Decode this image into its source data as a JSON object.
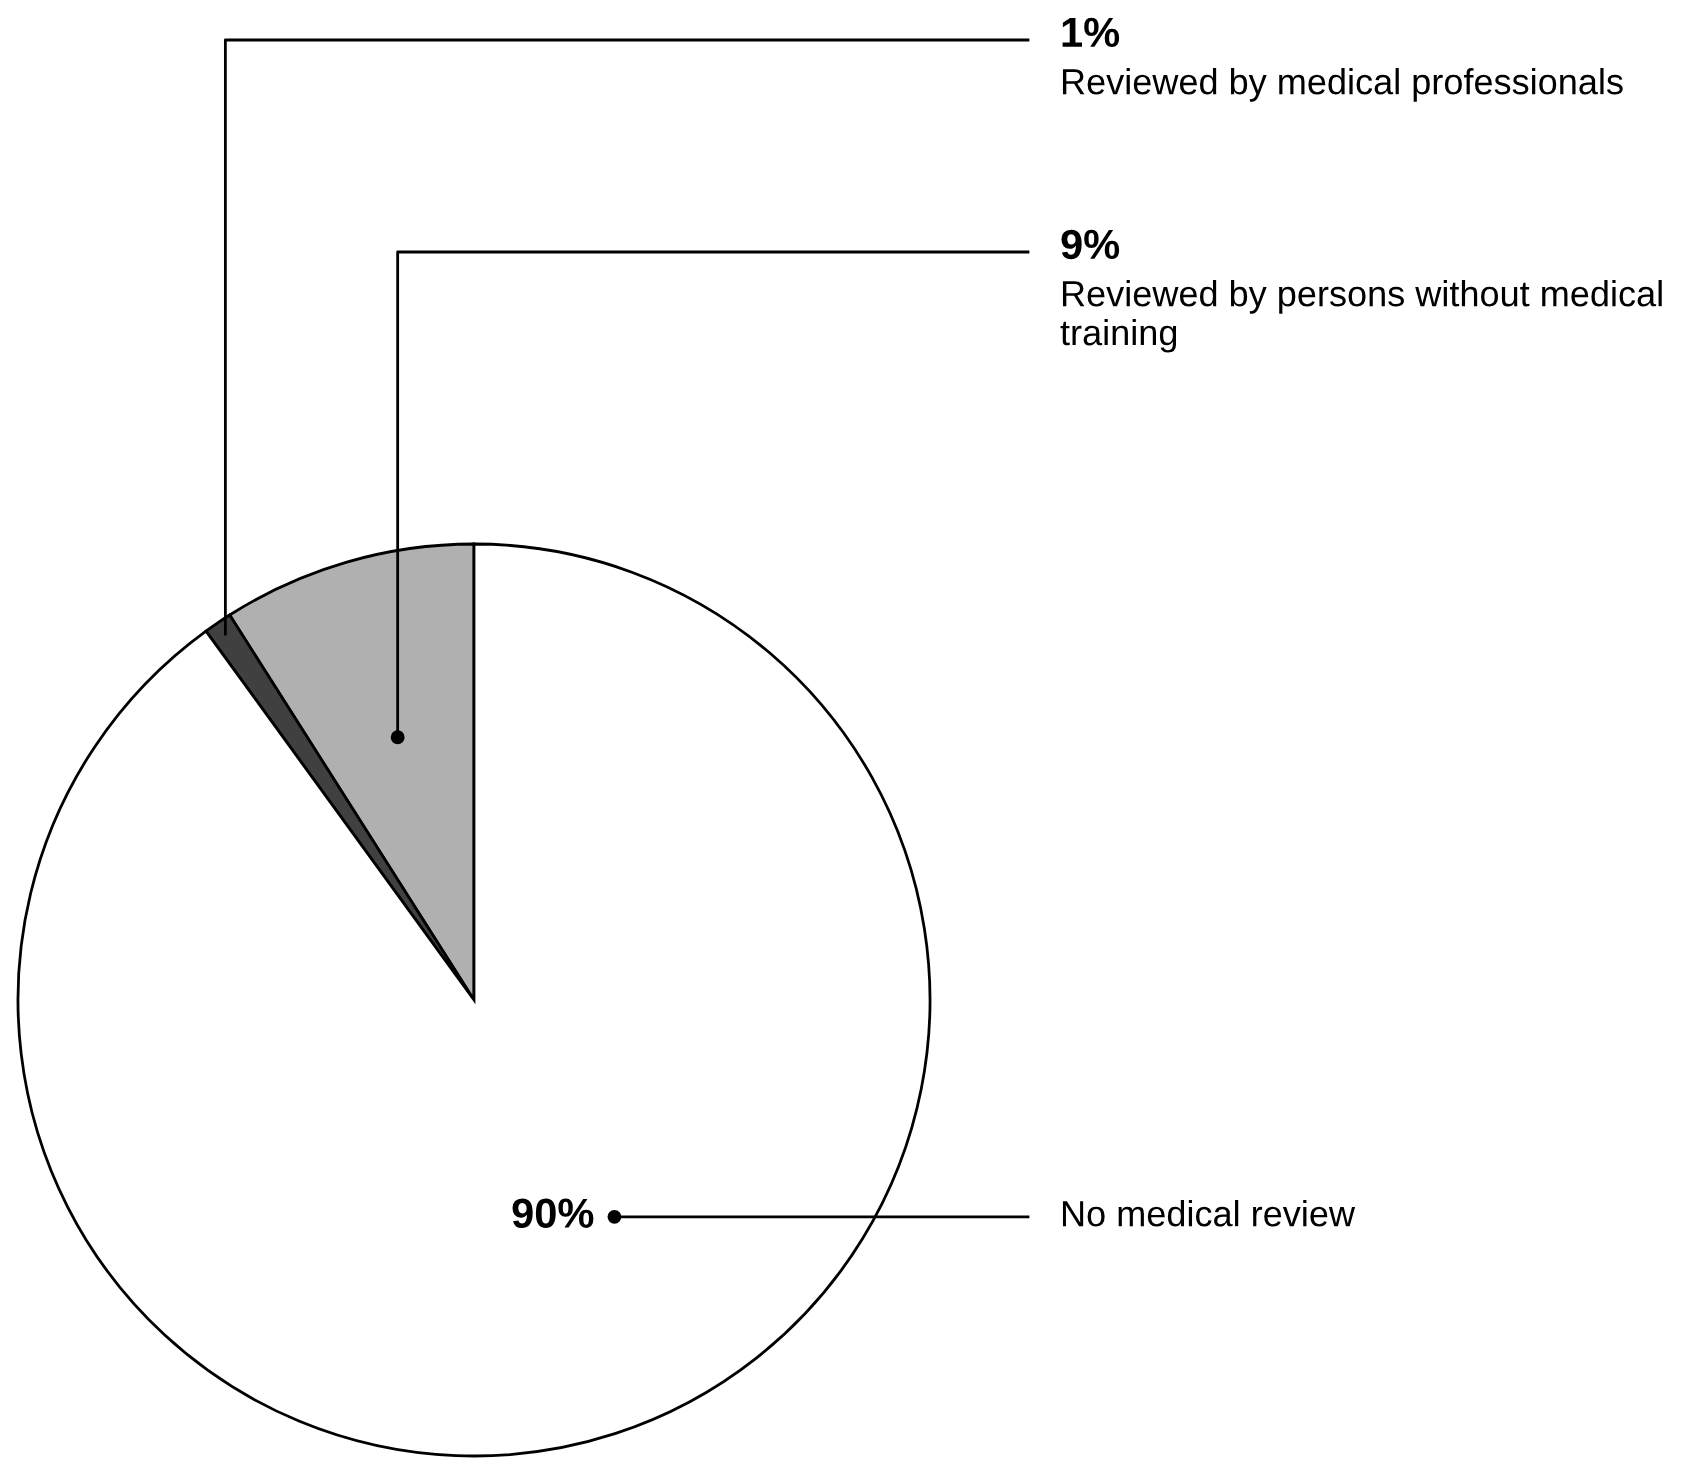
{
  "chart_data": {
    "type": "pie",
    "categories": [
      "Reviewed by persons without medical training",
      "Reviewed by medical professionals",
      "No medical review"
    ],
    "values": [
      9,
      1,
      90
    ],
    "colors": [
      "#b0b0b0",
      "#404040",
      "#ffffff"
    ],
    "value_labels": [
      "9%",
      "1%",
      "90%"
    ]
  }
}
